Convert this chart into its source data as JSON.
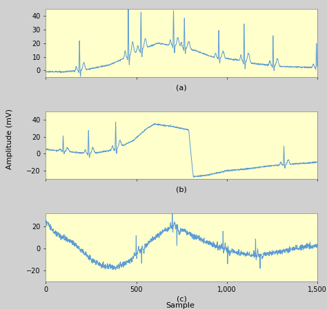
{
  "n_samples": 1500,
  "background_color": "#ffffcc",
  "line_color": "#5b9bd5",
  "line_width": 0.7,
  "xlim": [
    0,
    1500
  ],
  "subplot_a": {
    "ylim": [
      -5,
      45
    ],
    "yticks": [
      0,
      10,
      20,
      30,
      40
    ],
    "label": "(a)"
  },
  "subplot_b": {
    "ylim": [
      -30,
      50
    ],
    "yticks": [
      -20,
      0,
      20,
      40
    ],
    "label": "(b)"
  },
  "subplot_c": {
    "ylim": [
      -30,
      32
    ],
    "yticks": [
      -20,
      0,
      20
    ],
    "label": "(c)"
  },
  "xlabel": "Sample",
  "ylabel": "Amplitude (mV)",
  "xticks": [
    0,
    500,
    1000,
    1500
  ],
  "xtick_labels": [
    "0",
    "500",
    "1,000",
    "1,500"
  ]
}
